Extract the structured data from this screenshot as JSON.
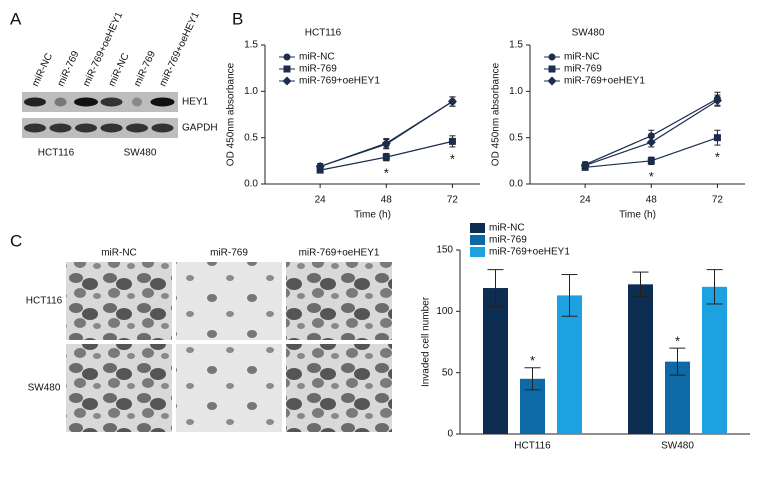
{
  "panel_labels": [
    "A",
    "B",
    "C"
  ],
  "blot": {
    "lanes": [
      "miR-NC",
      "miR-769",
      "miR-769+oeHEY1",
      "miR-NC",
      "miR-769",
      "miR-769+oeHEY1"
    ],
    "rows": [
      "HEY1",
      "GAPDH"
    ],
    "groups": [
      "HCT116",
      "SW480"
    ]
  },
  "micrographs": {
    "columns": [
      "miR-NC",
      "miR-769",
      "miR-769+oeHEY1"
    ],
    "rows": [
      "HCT116",
      "SW480"
    ]
  },
  "chart_data": [
    {
      "type": "line",
      "title": "HCT116",
      "xlabel": "Time (h)",
      "ylabel": "OD 450nm absorbance",
      "x": [
        24,
        48,
        72
      ],
      "xlim": [
        4,
        82
      ],
      "xticks": [
        24,
        48,
        72
      ],
      "ylim": [
        0,
        1.5
      ],
      "yticks": [
        {
          "value": 0,
          "label": "0.0"
        },
        0.5,
        {
          "value": 1,
          "label": "1.0"
        },
        1.5
      ],
      "legend": "upper left",
      "series": [
        {
          "name": "miR-NC",
          "color": "#1b2c4e",
          "marker": "circle",
          "values": [
            0.19,
            0.43,
            0.89
          ],
          "errors": [
            0.03,
            0.05,
            0.05
          ]
        },
        {
          "name": "miR-769",
          "color": "#1b2c4e",
          "marker": "square",
          "values": [
            0.15,
            0.29,
            0.46
          ],
          "errors": [
            0.03,
            0.04,
            0.06
          ]
        },
        {
          "name": "miR-769+oeHEY1",
          "color": "#1b2c4e",
          "marker": "diamond",
          "values": [
            0.19,
            0.44,
            0.89
          ],
          "errors": [
            0.03,
            0.05,
            0.05
          ]
        }
      ],
      "annotations": [
        {
          "text": "*",
          "x": 48,
          "series": "miR-769"
        },
        {
          "text": "*",
          "x": 72,
          "series": "miR-769"
        }
      ]
    },
    {
      "type": "line",
      "title": "SW480",
      "xlabel": "Time (h)",
      "ylabel": "OD 450nm absorbance",
      "x": [
        24,
        48,
        72
      ],
      "xlim": [
        4,
        82
      ],
      "xticks": [
        24,
        48,
        72
      ],
      "ylim": [
        0,
        1.5
      ],
      "yticks": [
        {
          "value": 0,
          "label": "0.0"
        },
        0.5,
        {
          "value": 1,
          "label": "1.0"
        },
        1.5
      ],
      "legend": "upper left",
      "series": [
        {
          "name": "miR-NC",
          "color": "#1b2c4e",
          "marker": "circle",
          "values": [
            0.21,
            0.52,
            0.92
          ],
          "errors": [
            0.03,
            0.06,
            0.07
          ]
        },
        {
          "name": "miR-769",
          "color": "#1b2c4e",
          "marker": "square",
          "values": [
            0.18,
            0.25,
            0.5
          ],
          "errors": [
            0.03,
            0.04,
            0.08
          ]
        },
        {
          "name": "miR-769+oeHEY1",
          "color": "#1b2c4e",
          "marker": "diamond",
          "values": [
            0.2,
            0.45,
            0.9
          ],
          "errors": [
            0.03,
            0.05,
            0.06
          ]
        }
      ],
      "annotations": [
        {
          "text": "*",
          "x": 48,
          "series": "miR-769"
        },
        {
          "text": "*",
          "x": 72,
          "series": "miR-769"
        }
      ]
    },
    {
      "type": "bar",
      "ylabel": "Invaded cell number",
      "categories": [
        "HCT116",
        "SW480"
      ],
      "ylim": [
        0,
        150
      ],
      "yticks": [
        0,
        50,
        100,
        150
      ],
      "legend": "upper left",
      "series": [
        {
          "name": "miR-NC",
          "color": "#0d2d52",
          "values": [
            119,
            122
          ],
          "errors": [
            15,
            10
          ]
        },
        {
          "name": "miR-769",
          "color": "#0e6aa6",
          "values": [
            45,
            59
          ],
          "errors": [
            9,
            11
          ]
        },
        {
          "name": "miR-769+oeHEY1",
          "color": "#1da1e0",
          "values": [
            113,
            120
          ],
          "errors": [
            17,
            14
          ]
        }
      ],
      "annotations": [
        {
          "text": "*",
          "category": "HCT116",
          "series": "miR-769"
        },
        {
          "text": "*",
          "category": "SW480",
          "series": "miR-769"
        }
      ]
    }
  ]
}
